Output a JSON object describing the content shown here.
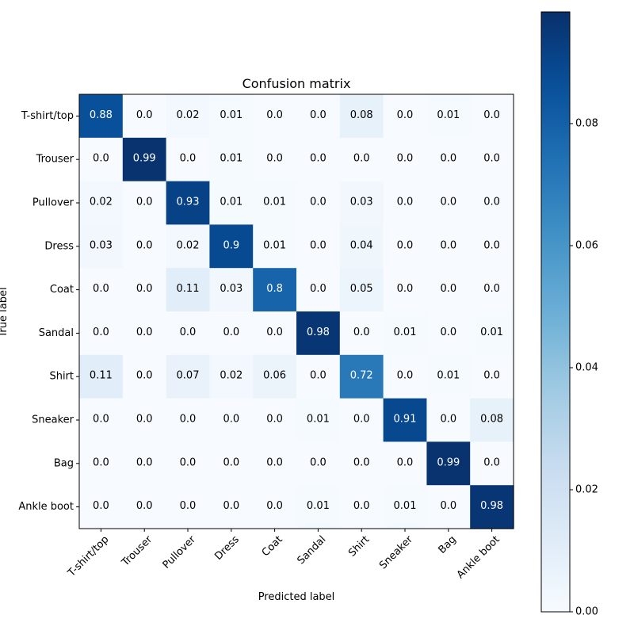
{
  "chart_data": {
    "type": "heatmap",
    "title": "Confusion matrix",
    "xlabel": "Predicted label",
    "ylabel": "True label",
    "labels": [
      "T-shirt/top",
      "Trouser",
      "Pullover",
      "Dress",
      "Coat",
      "Sandal",
      "Shirt",
      "Sneaker",
      "Bag",
      "Ankle boot"
    ],
    "matrix": [
      [
        "0.88",
        "0.0",
        "0.02",
        "0.01",
        "0.0",
        "0.0",
        "0.08",
        "0.0",
        "0.01",
        "0.0"
      ],
      [
        "0.0",
        "0.99",
        "0.0",
        "0.01",
        "0.0",
        "0.0",
        "0.0",
        "0.0",
        "0.0",
        "0.0"
      ],
      [
        "0.02",
        "0.0",
        "0.93",
        "0.01",
        "0.01",
        "0.0",
        "0.03",
        "0.0",
        "0.0",
        "0.0"
      ],
      [
        "0.03",
        "0.0",
        "0.02",
        "0.9",
        "0.01",
        "0.0",
        "0.04",
        "0.0",
        "0.0",
        "0.0"
      ],
      [
        "0.0",
        "0.0",
        "0.11",
        "0.03",
        "0.8",
        "0.0",
        "0.05",
        "0.0",
        "0.0",
        "0.0"
      ],
      [
        "0.0",
        "0.0",
        "0.0",
        "0.0",
        "0.0",
        "0.98",
        "0.0",
        "0.01",
        "0.0",
        "0.01"
      ],
      [
        "0.11",
        "0.0",
        "0.07",
        "0.02",
        "0.06",
        "0.0",
        "0.72",
        "0.0",
        "0.01",
        "0.0"
      ],
      [
        "0.0",
        "0.0",
        "0.0",
        "0.0",
        "0.0",
        "0.01",
        "0.0",
        "0.91",
        "0.0",
        "0.08"
      ],
      [
        "0.0",
        "0.0",
        "0.0",
        "0.0",
        "0.0",
        "0.0",
        "0.0",
        "0.0",
        "0.99",
        "0.0"
      ],
      [
        "0.0",
        "0.0",
        "0.0",
        "0.0",
        "0.0",
        "0.01",
        "0.0",
        "0.01",
        "0.0",
        "0.98"
      ]
    ],
    "colorbar": {
      "ticks": [
        "0.00",
        "0.02",
        "0.04",
        "0.06",
        "0.08"
      ],
      "tick_values": [
        0.0,
        0.02,
        0.04,
        0.06,
        0.08
      ],
      "range": [
        0.0,
        0.0983
      ]
    },
    "cmap": "Blues",
    "color_low": "#f7fbff",
    "color_high": "#08306b",
    "text_light": "#ffffff",
    "text_dark": "#000000"
  }
}
